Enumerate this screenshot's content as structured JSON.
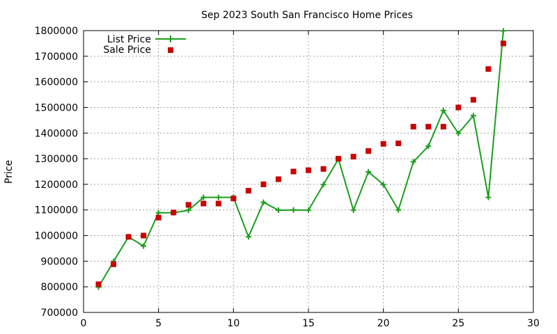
{
  "chart_data": {
    "type": "line",
    "title": "Sep 2023 South San Francisco Home Prices",
    "xlabel": "",
    "ylabel": "Price",
    "xlim": [
      0,
      30
    ],
    "ylim": [
      700000,
      1800000
    ],
    "x_ticks": [
      0,
      5,
      10,
      15,
      20,
      25,
      30
    ],
    "y_ticks": [
      700000,
      800000,
      900000,
      1000000,
      1100000,
      1200000,
      1300000,
      1400000,
      1500000,
      1600000,
      1700000,
      1800000
    ],
    "grid": true,
    "legend_position": "top-left",
    "series": [
      {
        "name": "List Price",
        "style": "line-points",
        "color": "#1a9e1a",
        "x": [
          1,
          2,
          3,
          4,
          5,
          6,
          7,
          8,
          9,
          10,
          11,
          12,
          13,
          14,
          15,
          16,
          17,
          18,
          19,
          20,
          21,
          22,
          23,
          24,
          25,
          26,
          27,
          28
        ],
        "values": [
          799000,
          899000,
          995000,
          959000,
          1089000,
          1089000,
          1099000,
          1149000,
          1149000,
          1149000,
          995000,
          1130000,
          1099000,
          1100000,
          1099000,
          1199000,
          1299000,
          1099000,
          1249000,
          1199000,
          1100000,
          1288000,
          1349000,
          1488000,
          1399000,
          1468000,
          1149000,
          1799000
        ]
      },
      {
        "name": "Sale Price",
        "style": "points",
        "color": "#cc0000",
        "x": [
          1,
          2,
          3,
          4,
          5,
          6,
          7,
          8,
          9,
          10,
          11,
          12,
          13,
          14,
          15,
          16,
          17,
          18,
          19,
          20,
          21,
          22,
          23,
          24,
          25,
          26,
          27,
          28
        ],
        "values": [
          810000,
          888000,
          995000,
          1000000,
          1070000,
          1090000,
          1120000,
          1125000,
          1125000,
          1145000,
          1175000,
          1200000,
          1220000,
          1250000,
          1255000,
          1260000,
          1300000,
          1308000,
          1330000,
          1358000,
          1360000,
          1425000,
          1425000,
          1425000,
          1500000,
          1530000,
          1650000,
          1750000
        ]
      }
    ]
  }
}
